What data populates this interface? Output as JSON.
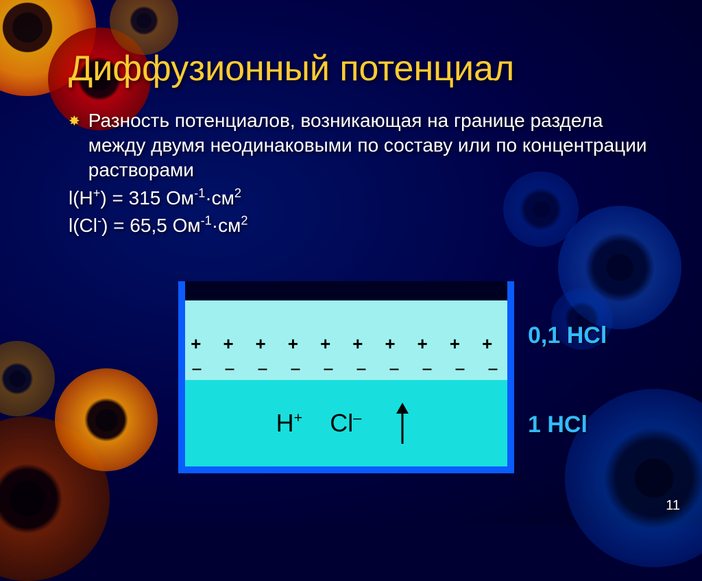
{
  "title": "Диффузионный потенциал",
  "bullet": "Разность потенциалов, возникающая на границе раздела между двумя неодинаковыми по составу или по концентрации растворами",
  "eq1_html": "l(H<sup>+</sup>) = 315 Ом<sup>-1</sup>·см<sup>2</sup>",
  "eq2_html": "l(Cl<sup>-</sup>) = 65,5 Ом<sup>-1</sup>·см<sup>2</sup>",
  "diagram": {
    "top_color": "#9ff0ee",
    "bottom_color": "#18dfdd",
    "border_color": "#0a5cff",
    "plus_row": "+ + + + + + + + + + + + + + +",
    "minus_row": "– – – – – – – – – – – – – – –",
    "ion1_html": "H<sup>+</sup>",
    "ion2_html": "Cl<sup>–</sup>",
    "label_top": "0,1 HCl",
    "label_bottom": "1 HCl",
    "label_color": "#33bbff"
  },
  "page_number": "11"
}
